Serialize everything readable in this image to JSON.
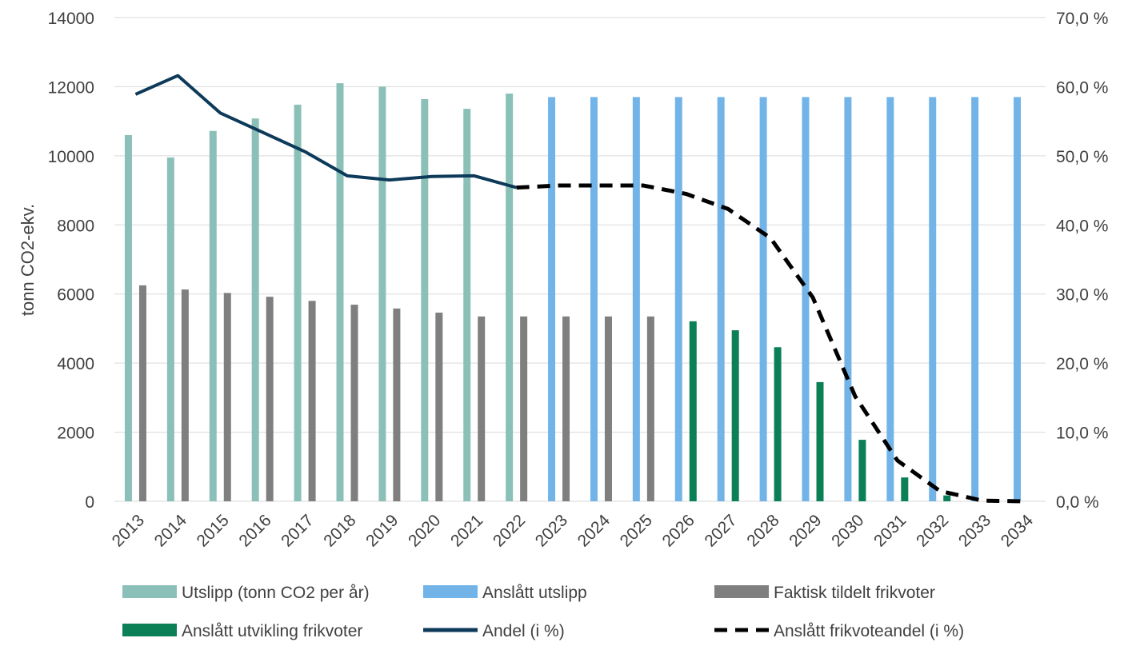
{
  "chart_data": {
    "type": "bar",
    "categories": [
      "2013",
      "2014",
      "2015",
      "2016",
      "2017",
      "2018",
      "2019",
      "2020",
      "2021",
      "2022",
      "2023",
      "2024",
      "2025",
      "2026",
      "2027",
      "2028",
      "2029",
      "2030",
      "2031",
      "2032",
      "2033",
      "2034"
    ],
    "ylabel": "tonn CO2-ekv.",
    "ylim": [
      0,
      14000
    ],
    "y_ticks": [
      "0",
      "2000",
      "4000",
      "6000",
      "8000",
      "10000",
      "12000",
      "14000"
    ],
    "y2lim": [
      0,
      70
    ],
    "y2_ticks": [
      "0,0 %",
      "10,0 %",
      "20,0 %",
      "30,0 %",
      "40,0 %",
      "50,0 %",
      "60,0 %",
      "70,0 %"
    ],
    "grid": true,
    "legend_position": "bottom",
    "colors": {
      "utslipp": "#8bc0b9",
      "anslatt_utslipp": "#72b4e8",
      "faktisk": "#7f7f7f",
      "anslatt_frikvoter": "#0b7f56",
      "andel": "#0e3a5a",
      "anslatt_andel": "#000000"
    },
    "series": [
      {
        "name": "Utslipp (tonn CO2 per år)",
        "type": "bar",
        "slot": 0,
        "color_key": "utslipp",
        "values": [
          10600,
          9950,
          10720,
          11080,
          11480,
          12100,
          12000,
          11640,
          11360,
          11800,
          null,
          null,
          null,
          null,
          null,
          null,
          null,
          null,
          null,
          null,
          null,
          null
        ]
      },
      {
        "name": "Anslått utslipp",
        "type": "bar",
        "slot": 0,
        "color_key": "anslatt_utslipp",
        "values": [
          null,
          null,
          null,
          null,
          null,
          null,
          null,
          null,
          null,
          null,
          11700,
          11700,
          11700,
          11700,
          11700,
          11700,
          11700,
          11700,
          11700,
          11700,
          11700,
          11700
        ]
      },
      {
        "name": "Faktisk tildelt frikvoter",
        "type": "bar",
        "slot": 1,
        "color_key": "faktisk",
        "values": [
          6250,
          6130,
          6030,
          5920,
          5800,
          5690,
          5580,
          5460,
          5350,
          5350,
          5350,
          5350,
          5350,
          null,
          null,
          null,
          null,
          null,
          null,
          null,
          null,
          null
        ]
      },
      {
        "name": "Anslått utvikling frikvoter",
        "type": "bar",
        "slot": 1,
        "color_key": "anslatt_frikvoter",
        "values": [
          null,
          null,
          null,
          null,
          null,
          null,
          null,
          null,
          null,
          null,
          null,
          null,
          null,
          5210,
          4950,
          4460,
          3450,
          1780,
          690,
          170,
          0,
          0
        ]
      },
      {
        "name": "Andel (i %)",
        "type": "line",
        "axis": "right",
        "color_key": "andel",
        "values": [
          58.9,
          61.6,
          56.2,
          53.4,
          50.6,
          47.1,
          46.5,
          47.0,
          47.1,
          45.4,
          null,
          null,
          null,
          null,
          null,
          null,
          null,
          null,
          null,
          null,
          null,
          null
        ]
      },
      {
        "name": "Anslått frikvoteandel (i %)",
        "type": "line",
        "dashed": true,
        "axis": "right",
        "color_key": "anslatt_andel",
        "values": [
          null,
          null,
          null,
          null,
          null,
          null,
          null,
          null,
          null,
          45.4,
          45.7,
          45.7,
          45.7,
          44.5,
          42.3,
          38.1,
          29.5,
          15.2,
          5.9,
          1.5,
          0.1,
          0.0
        ]
      }
    ]
  }
}
